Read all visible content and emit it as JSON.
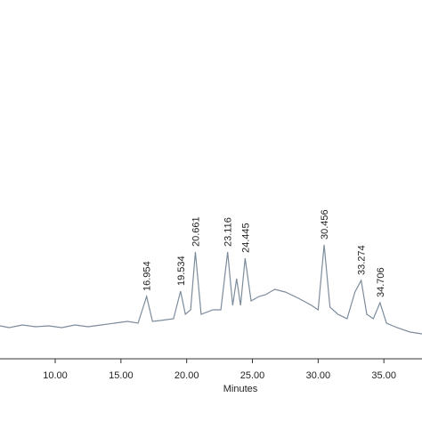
{
  "chart_data": {
    "type": "line",
    "x_label": "Minutes",
    "x": [
      5.8,
      6.5,
      7.5,
      8.5,
      9.5,
      10.5,
      11.5,
      12.5,
      13.5,
      14.5,
      15.5,
      16.3,
      16.954,
      17.4,
      18,
      19,
      19.534,
      19.9,
      20.3,
      20.661,
      21.1,
      22,
      22.6,
      23.116,
      23.5,
      23.8,
      24.1,
      24.445,
      24.9,
      25.5,
      26,
      26.7,
      27.5,
      28.5,
      29.5,
      30,
      30.456,
      30.9,
      31.5,
      32.2,
      32.8,
      33.274,
      33.7,
      34.2,
      34.706,
      35.2,
      36,
      37,
      37.9
    ],
    "series": [
      {
        "color": "#7d8c9c",
        "values": [
          37,
          35,
          38,
          36,
          37,
          35,
          38,
          36,
          38,
          40,
          42,
          40,
          70,
          42,
          43,
          45,
          76,
          50,
          55,
          120,
          50,
          55,
          55,
          120,
          60,
          90,
          60,
          113,
          65,
          70,
          72,
          78,
          75,
          68,
          60,
          55,
          128,
          58,
          50,
          45,
          75,
          88,
          50,
          45,
          63,
          40,
          35,
          30,
          28
        ]
      }
    ],
    "peaks": [
      16.954,
      19.534,
      20.661,
      23.116,
      24.445,
      30.456,
      33.274,
      34.706
    ],
    "xlim": [
      5.8,
      37.9
    ],
    "xticks": [
      {
        "value": 10,
        "label": "10.00"
      },
      {
        "value": 15,
        "label": "15.00"
      },
      {
        "value": 20,
        "label": "20.00"
      },
      {
        "value": 25,
        "label": "25.00"
      },
      {
        "value": 30,
        "label": "30.00"
      },
      {
        "value": 35,
        "label": "35.00"
      }
    ],
    "ylim": [
      0,
      403
    ]
  }
}
